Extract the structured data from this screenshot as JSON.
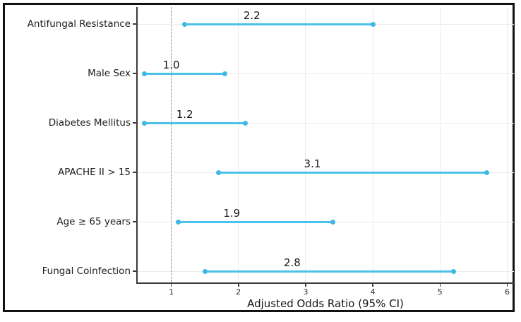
{
  "figure": {
    "background": "#ffffff",
    "border_color": "#111111"
  },
  "chart_data": {
    "type": "scatter",
    "subtype": "forest-plot-horizontal-ci",
    "title": "",
    "xlabel": "Adjusted Odds Ratio (95% CI)",
    "ylabel": "",
    "xlim": [
      0.5,
      6.1
    ],
    "xticks": [
      "1",
      "2",
      "3",
      "4",
      "5",
      "6"
    ],
    "xtick_values": [
      1,
      2,
      3,
      4,
      5,
      6
    ],
    "reference_line_x": 1,
    "grid": true,
    "legend": "none",
    "rows": [
      {
        "label": "Antifungal Resistance",
        "or": 2.2,
        "or_label": "2.2",
        "ci_low": 1.2,
        "ci_high": 4.0
      },
      {
        "label": "Male Sex",
        "or": 1.0,
        "or_label": "1.0",
        "ci_low": 0.6,
        "ci_high": 1.8
      },
      {
        "label": "Diabetes Mellitus",
        "or": 1.2,
        "or_label": "1.2",
        "ci_low": 0.6,
        "ci_high": 2.1
      },
      {
        "label": "APACHE II > 15",
        "or": 3.1,
        "or_label": "3.1",
        "ci_low": 1.7,
        "ci_high": 5.7
      },
      {
        "label": "Age ≥ 65 years",
        "or": 1.9,
        "or_label": "1.9",
        "ci_low": 1.1,
        "ci_high": 3.4
      },
      {
        "label": "Fungal Coinfection",
        "or": 2.8,
        "or_label": "2.8",
        "ci_low": 1.5,
        "ci_high": 5.2
      }
    ],
    "colors": {
      "ci_line": "#4cc1e9",
      "marker": "#3eb9e6",
      "reference_line": "#8e8e8e",
      "grid_line": "#ececec",
      "spine": "#3a3a3a",
      "text": "#161616",
      "tick_label": "#2e2e2e"
    }
  }
}
